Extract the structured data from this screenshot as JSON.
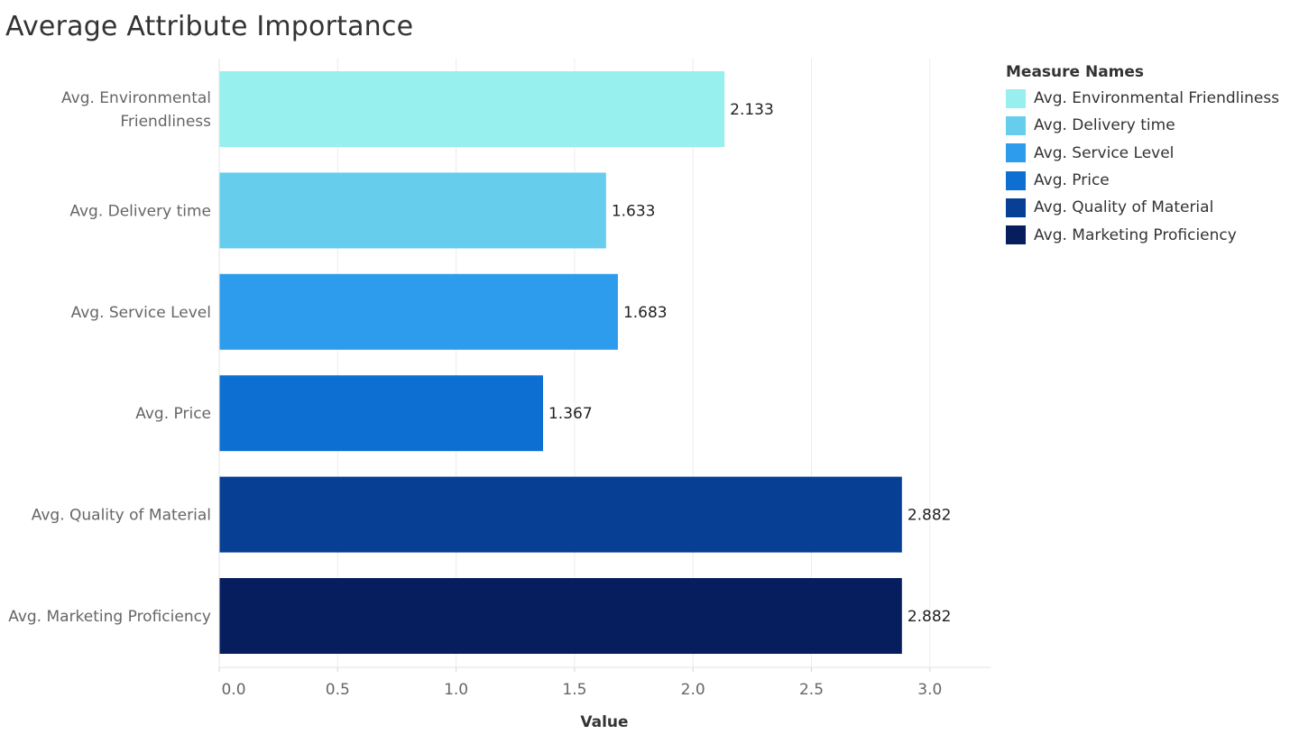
{
  "chart_data": {
    "type": "bar",
    "orientation": "horizontal",
    "title": "Average Attribute Importance",
    "xlabel": "Value",
    "ylabel": "",
    "xlim": [
      0,
      3.2
    ],
    "x_ticks": [
      "0.0",
      "0.5",
      "1.0",
      "1.5",
      "2.0",
      "2.5",
      "3.0"
    ],
    "x_tick_values": [
      0,
      0.5,
      1.0,
      1.5,
      2.0,
      2.5,
      3.0
    ],
    "grid": true,
    "legend_position": "right",
    "legend_title": "Measure Names",
    "categories": [
      "Avg. Environmental Friendliness",
      "Avg. Delivery time",
      "Avg. Service Level",
      "Avg. Price",
      "Avg. Quality of Material",
      "Avg. Marketing Proficiency"
    ],
    "category_label_lines": [
      [
        "Avg. Environmental",
        "Friendliness"
      ],
      [
        "Avg. Delivery time"
      ],
      [
        "Avg. Service Level"
      ],
      [
        "Avg. Price"
      ],
      [
        "Avg. Quality of Material"
      ],
      [
        "Avg. Marketing Proficiency"
      ]
    ],
    "values": [
      2.133,
      1.633,
      1.683,
      1.367,
      2.882,
      2.882
    ],
    "data_labels": [
      "2.133",
      "1.633",
      "1.683",
      "1.367",
      "2.882",
      "2.882"
    ],
    "colors": [
      "#97F0EE",
      "#67CDEC",
      "#2E9CEC",
      "#0C6FD1",
      "#063F93",
      "#061D5E"
    ]
  }
}
